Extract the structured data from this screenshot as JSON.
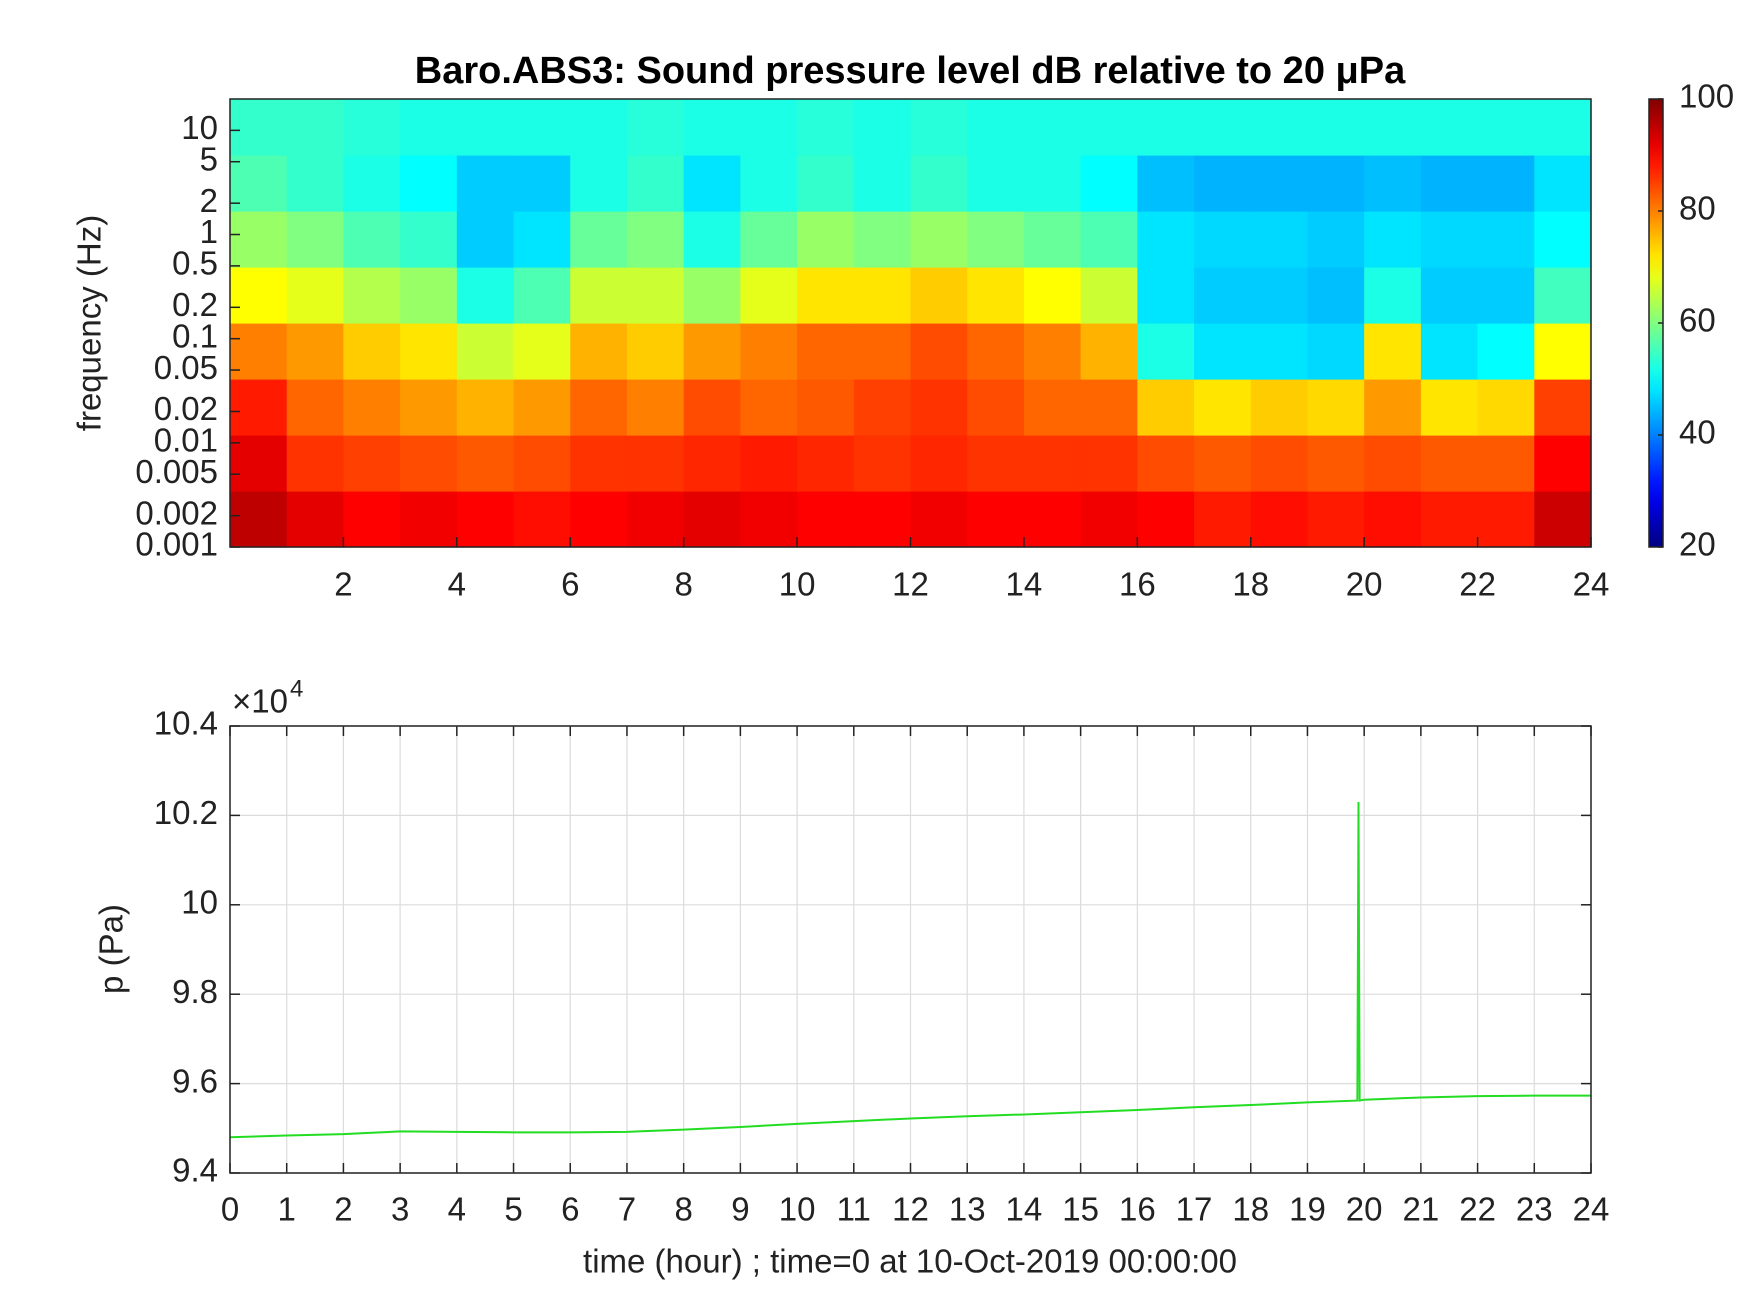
{
  "chart_data": [
    {
      "type": "heatmap",
      "title": "Baro.ABS3: Sound pressure level dB relative to 20 μPa",
      "ylabel": "frequency (Hz)",
      "xlim": [
        0,
        24
      ],
      "xticks": [
        2,
        4,
        6,
        8,
        10,
        12,
        14,
        16,
        18,
        20,
        22,
        24
      ],
      "ylim": [
        0.001,
        20
      ],
      "ylog": true,
      "yticks": [
        0.001,
        0.002,
        0.005,
        0.01,
        0.02,
        0.05,
        0.1,
        0.2,
        0.5,
        1,
        2,
        5,
        10
      ],
      "colormap": "jet",
      "clim": [
        20,
        100
      ],
      "cticks": [
        20,
        40,
        60,
        80,
        100
      ],
      "values": [
        [
          95,
          92,
          90,
          91,
          90,
          89,
          90,
          91,
          92,
          91,
          90,
          90,
          91,
          90,
          90,
          91,
          90,
          88,
          89,
          88,
          89,
          88,
          88,
          94
        ],
        [
          92,
          86,
          85,
          84,
          83,
          84,
          86,
          86,
          87,
          88,
          87,
          86,
          87,
          86,
          86,
          86,
          84,
          83,
          84,
          83,
          84,
          83,
          83,
          90
        ],
        [
          88,
          82,
          80,
          78,
          76,
          78,
          82,
          80,
          84,
          82,
          83,
          85,
          86,
          84,
          82,
          82,
          74,
          72,
          74,
          73,
          78,
          72,
          73,
          85
        ],
        [
          80,
          78,
          74,
          72,
          66,
          68,
          76,
          74,
          78,
          80,
          82,
          82,
          84,
          82,
          80,
          76,
          52,
          48,
          48,
          47,
          72,
          48,
          50,
          70
        ],
        [
          70,
          68,
          64,
          62,
          52,
          56,
          66,
          66,
          62,
          68,
          72,
          72,
          74,
          72,
          70,
          66,
          48,
          46,
          46,
          45,
          52,
          46,
          46,
          55
        ],
        [
          62,
          60,
          56,
          54,
          46,
          48,
          58,
          60,
          52,
          58,
          62,
          60,
          62,
          60,
          58,
          56,
          48,
          47,
          47,
          46,
          48,
          47,
          47,
          50
        ],
        [
          56,
          54,
          52,
          50,
          46,
          46,
          52,
          54,
          48,
          52,
          54,
          52,
          54,
          52,
          52,
          50,
          45,
          44,
          44,
          44,
          45,
          44,
          44,
          48
        ],
        [
          54,
          54,
          53,
          52,
          52,
          52,
          52,
          53,
          52,
          52,
          53,
          52,
          53,
          52,
          52,
          52,
          52,
          52,
          52,
          52,
          52,
          52,
          52,
          52
        ]
      ]
    },
    {
      "type": "line",
      "xlabel": "time (hour) ; time=0 at 10-Oct-2019 00:00:00",
      "ylabel": "p (Pa)",
      "y_multiplier": {
        "base": "×10",
        "exponent": "4"
      },
      "xlim": [
        0,
        24
      ],
      "xticks": [
        0,
        1,
        2,
        3,
        4,
        5,
        6,
        7,
        8,
        9,
        10,
        11,
        12,
        13,
        14,
        15,
        16,
        17,
        18,
        19,
        20,
        21,
        22,
        23,
        24
      ],
      "ylim": [
        94000,
        104000
      ],
      "yticks": [
        {
          "value": 94000,
          "label": "9.4"
        },
        {
          "value": 96000,
          "label": "9.6"
        },
        {
          "value": 98000,
          "label": "9.8"
        },
        {
          "value": 100000,
          "label": "10"
        },
        {
          "value": 102000,
          "label": "10.2"
        },
        {
          "value": 104000,
          "label": "10.4"
        }
      ],
      "grid": true,
      "color": "#22dd22",
      "x": [
        0,
        1,
        2,
        3,
        4,
        5,
        6,
        7,
        8,
        9,
        10,
        11,
        12,
        13,
        14,
        15,
        16,
        17,
        18,
        19,
        19.88,
        19.9,
        19.92,
        20,
        21,
        22,
        23,
        24
      ],
      "values": [
        94800,
        94840,
        94870,
        94930,
        94920,
        94910,
        94910,
        94920,
        94970,
        95030,
        95100,
        95160,
        95220,
        95270,
        95310,
        95360,
        95410,
        95470,
        95520,
        95580,
        95620,
        102300,
        95620,
        95640,
        95690,
        95720,
        95730,
        95730
      ]
    }
  ]
}
